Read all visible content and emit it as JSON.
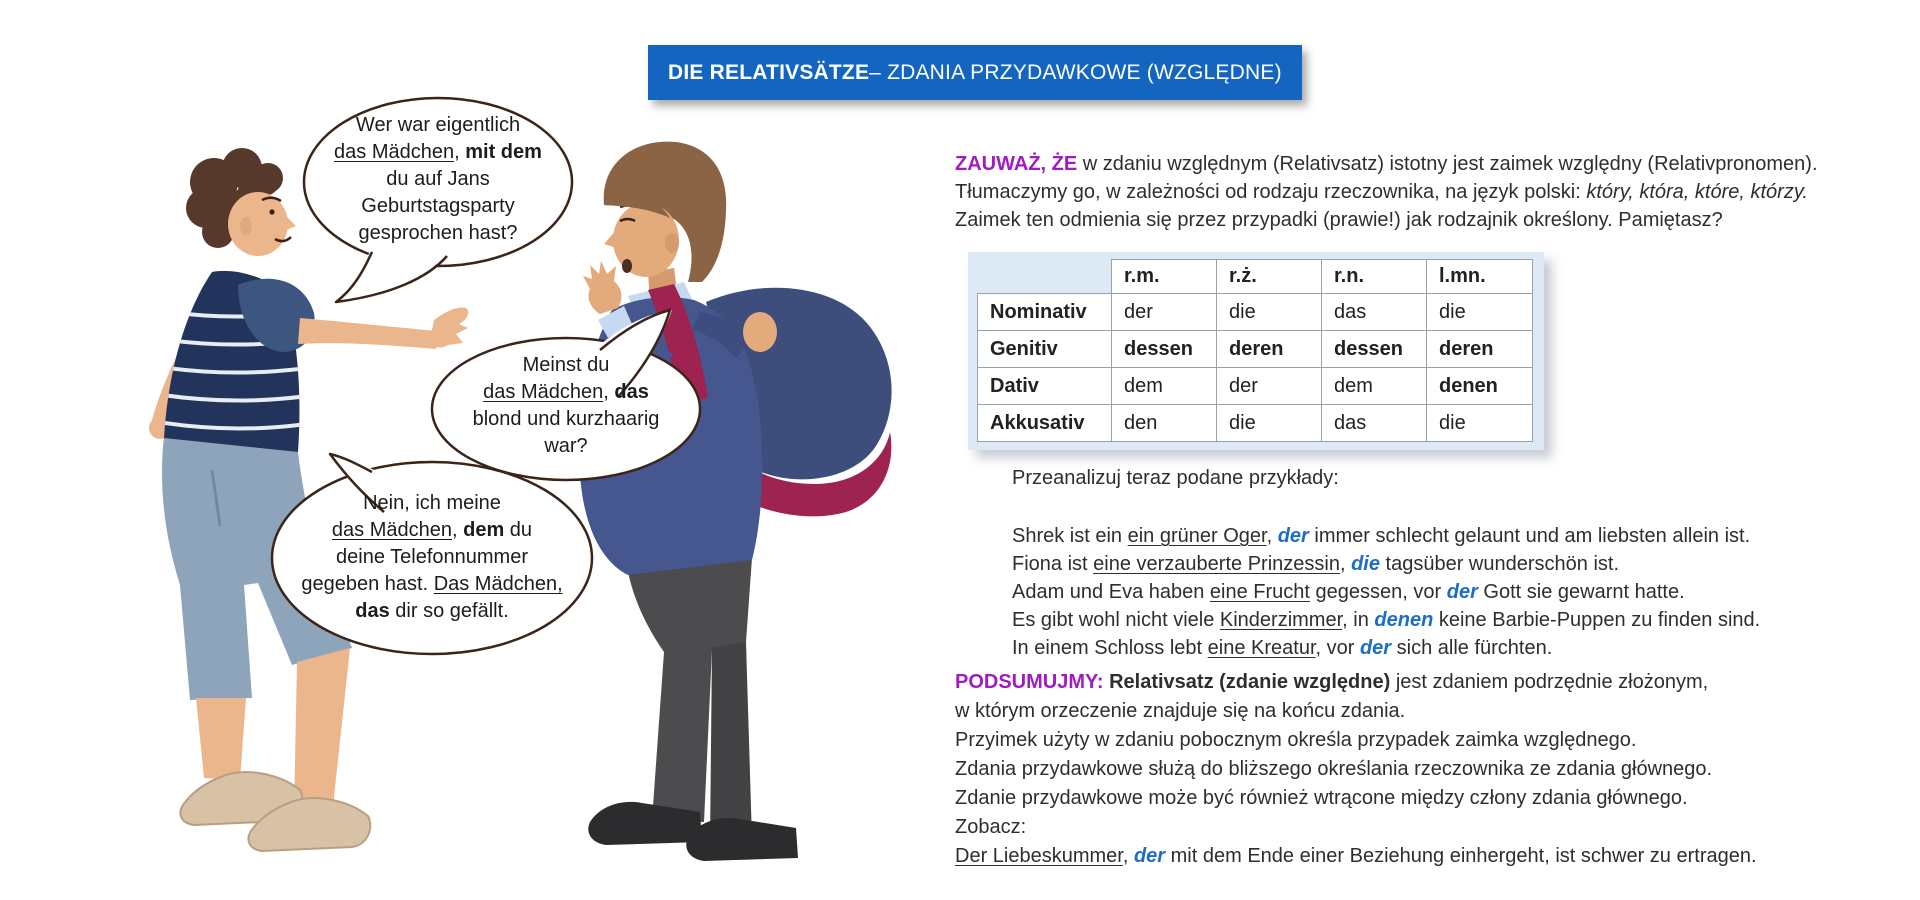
{
  "colors": {
    "banner": "#1465BF",
    "accent": "#1B6EC8",
    "purple": "#A01BC0",
    "bubble-border": "#3B2418",
    "panel": "#DDE9F5",
    "text": "#2E2E2E"
  },
  "title": {
    "bold": "DIE RELATIVSÄTZE",
    "rest": " – ZDANIA PRZYDAWKOWE  (WZGLĘDNE)"
  },
  "bubbles": [
    {
      "lines": [
        [
          {
            "t": "Wer war eigentlich",
            "s": "n"
          }
        ],
        [
          {
            "t": "das Mädchen",
            "s": "u"
          },
          {
            "t": ", ",
            "s": "n"
          },
          {
            "t": "mit dem",
            "s": "b"
          }
        ],
        [
          {
            "t": "du auf Jans",
            "s": "n"
          }
        ],
        [
          {
            "t": "Geburtstagsparty",
            "s": "n"
          }
        ],
        [
          {
            "t": "gesprochen hast?",
            "s": "n"
          }
        ]
      ]
    },
    {
      "lines": [
        [
          {
            "t": "Meinst du",
            "s": "n"
          }
        ],
        [
          {
            "t": "das Mädchen",
            "s": "u"
          },
          {
            "t": ", ",
            "s": "n"
          },
          {
            "t": "das",
            "s": "b"
          }
        ],
        [
          {
            "t": "blond und kurzhaarig",
            "s": "n"
          }
        ],
        [
          {
            "t": "war?",
            "s": "n"
          }
        ]
      ]
    },
    {
      "lines": [
        [
          {
            "t": "Nein, ich meine",
            "s": "n"
          }
        ],
        [
          {
            "t": "das Mädchen",
            "s": "u"
          },
          {
            "t": ", ",
            "s": "n"
          },
          {
            "t": "dem",
            "s": "b"
          },
          {
            "t": " du",
            "s": "n"
          }
        ],
        [
          {
            "t": "deine Telefonnummer",
            "s": "n"
          }
        ],
        [
          {
            "t": "gegeben hast. ",
            "s": "n"
          },
          {
            "t": "Das Mädchen,",
            "s": "u"
          }
        ],
        [
          {
            "t": "das",
            "s": "b"
          },
          {
            "t": " dir so gefällt.",
            "s": "n"
          }
        ]
      ]
    }
  ],
  "intro": {
    "lines": [
      [
        {
          "t": "ZAUWAŻ, ŻE",
          "s": "pb"
        },
        {
          "t": " w zdaniu względnym (Relativsatz) istotny jest zaimek względny (Relativpronomen).",
          "s": "n"
        }
      ],
      [
        {
          "t": "Tłumaczymy go, w zależności od rodzaju rzeczownika, na język polski: ",
          "s": "n"
        },
        {
          "t": "który, która, które, którzy.",
          "s": "i"
        }
      ],
      [
        {
          "t": "Zaimek ten odmienia się przez przypadki (prawie!) jak rodzajnik określony. Pamiętasz?",
          "s": "n"
        }
      ]
    ]
  },
  "table": {
    "headers": [
      "",
      "r.m.",
      "r.ż.",
      "r.n.",
      "l.mn."
    ],
    "rows": [
      {
        "label": "Nominativ",
        "cells": [
          {
            "t": "der"
          },
          {
            "t": "die"
          },
          {
            "t": "das"
          },
          {
            "t": "die"
          }
        ]
      },
      {
        "label": "Genitiv",
        "cells": [
          {
            "t": "dessen",
            "b": true
          },
          {
            "t": "deren",
            "b": true
          },
          {
            "t": "dessen",
            "b": true
          },
          {
            "t": "deren",
            "b": true
          }
        ]
      },
      {
        "label": "Dativ",
        "cells": [
          {
            "t": "dem"
          },
          {
            "t": "der"
          },
          {
            "t": "dem"
          },
          {
            "t": "denen",
            "b": true
          }
        ]
      },
      {
        "label": "Akkusativ",
        "cells": [
          {
            "t": "den"
          },
          {
            "t": "die"
          },
          {
            "t": "das"
          },
          {
            "t": "die"
          }
        ]
      }
    ]
  },
  "examples": {
    "heading": "Przeanalizuj teraz podane przykłady:",
    "lines": [
      [
        {
          "t": "Shrek ist ein ",
          "s": "n"
        },
        {
          "t": "ein grüner Oger",
          "s": "u"
        },
        {
          "t": ", ",
          "s": "n"
        },
        {
          "t": "der",
          "s": "p"
        },
        {
          "t": " immer schlecht gelaunt und am liebsten allein ist.",
          "s": "n"
        }
      ],
      [
        {
          "t": "Fiona ist ",
          "s": "n"
        },
        {
          "t": "eine verzauberte Prinzessin",
          "s": "u"
        },
        {
          "t": ", ",
          "s": "n"
        },
        {
          "t": "die",
          "s": "p"
        },
        {
          "t": " tagsüber wunderschön ist.",
          "s": "n"
        }
      ],
      [
        {
          "t": "Adam und Eva haben ",
          "s": "n"
        },
        {
          "t": "eine Frucht",
          "s": "u"
        },
        {
          "t": " gegessen, vor ",
          "s": "n"
        },
        {
          "t": "der",
          "s": "p"
        },
        {
          "t": " Gott sie gewarnt hatte.",
          "s": "n"
        }
      ],
      [
        {
          "t": "Es gibt wohl nicht viele ",
          "s": "n"
        },
        {
          "t": "Kinderzimmer",
          "s": "u"
        },
        {
          "t": ", in ",
          "s": "n"
        },
        {
          "t": "denen",
          "s": "p"
        },
        {
          "t": " keine Barbie-Puppen zu finden sind.",
          "s": "n"
        }
      ],
      [
        {
          "t": "In einem Schloss lebt ",
          "s": "n"
        },
        {
          "t": "eine Kreatur",
          "s": "u"
        },
        {
          "t": ", vor ",
          "s": "n"
        },
        {
          "t": "der",
          "s": "p"
        },
        {
          "t": " sich alle fürchten.",
          "s": "n"
        }
      ]
    ]
  },
  "summary": {
    "lines": [
      [
        {
          "t": "PODSUMUJMY: ",
          "s": "pb"
        },
        {
          "t": "Relativsatz (zdanie względne) ",
          "s": "b"
        },
        {
          "t": "jest zdaniem podrzędnie złożonym,",
          "s": "n"
        }
      ],
      [
        {
          "t": "w którym  orzeczenie znajduje się na końcu zdania.",
          "s": "n"
        }
      ],
      [
        {
          "t": "Przyimek użyty w zdaniu pobocznym określa przypadek zaimka względnego.",
          "s": "n"
        }
      ],
      [
        {
          "t": "Zdania przydawkowe służą do bliższego określania rzeczownika ze zdania głównego.",
          "s": "n"
        }
      ],
      [
        {
          "t": "Zdanie przydawkowe może być również wtrącone między człony zdania głównego.",
          "s": "n"
        }
      ],
      [
        {
          "t": "Zobacz:",
          "s": "n"
        }
      ],
      [
        {
          "t": "Der Liebeskummer",
          "s": "u"
        },
        {
          "t": ", ",
          "s": "n"
        },
        {
          "t": "der",
          "s": "p"
        },
        {
          "t": " mit dem Ende einer Beziehung einhergeht, ist schwer zu ertragen.",
          "s": "n"
        }
      ]
    ]
  }
}
